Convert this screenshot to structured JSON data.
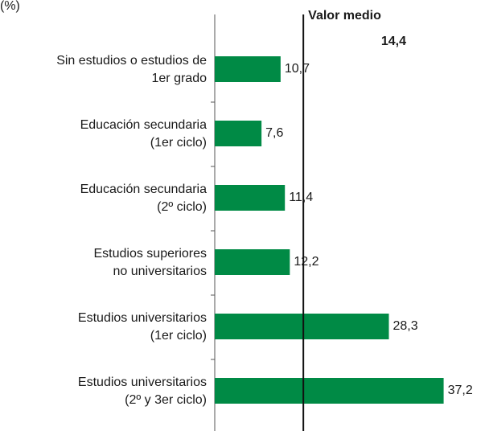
{
  "chart_data": {
    "type": "bar",
    "orientation": "horizontal",
    "unit_label": "(%)",
    "categories": [
      [
        "Sin estudios o estudios de",
        "1er grado"
      ],
      [
        "Educación secundaria",
        "(1er ciclo)"
      ],
      [
        "Educación secundaria",
        "(2º ciclo)"
      ],
      [
        "Estudios superiores",
        "no universitarios"
      ],
      [
        "Estudios universitarios",
        "(1er ciclo)"
      ],
      [
        "Estudios universitarios",
        "(2º y 3er ciclo)"
      ]
    ],
    "values": [
      10.7,
      7.6,
      11.4,
      12.2,
      28.3,
      37.2
    ],
    "value_labels": [
      "10,7",
      "7,6",
      "11,4",
      "12,2",
      "28,3",
      "37,2"
    ],
    "color": "#008a45",
    "xlim": [
      0,
      40
    ],
    "mean_line": {
      "label": "Valor medio",
      "value": 14.4,
      "value_label": "14,4"
    }
  }
}
